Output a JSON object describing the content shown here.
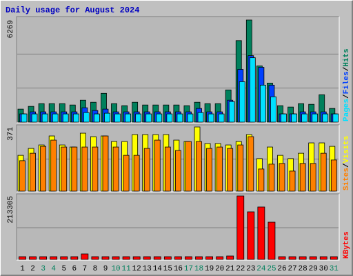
{
  "chart_data": [
    {
      "type": "bar",
      "title": "Daily usage for August 2024",
      "ylim": [
        0,
        6269
      ],
      "yticks": [
        6269
      ],
      "grid_divisions": 3,
      "separator": "/",
      "series": [
        {
          "name": "Hits",
          "color": "#00805c",
          "values": [
            799,
            968,
            1136,
            1136,
            1136,
            1052,
            1346,
            1220,
            1767,
            1136,
            1010,
            1220,
            1052,
            1052,
            1052,
            1052,
            1010,
            1220,
            1136,
            1136,
            1977,
            5006,
            6269,
            3450,
            2398,
            1010,
            926,
            1136,
            1094,
            1683,
            841
          ]
        },
        {
          "name": "Files",
          "color": "#0040ff",
          "values": [
            505,
            631,
            631,
            631,
            631,
            631,
            883,
            715,
            799,
            631,
            631,
            631,
            631,
            631,
            631,
            631,
            631,
            841,
            631,
            631,
            1346,
            3239,
            4081,
            3366,
            2272,
            505,
            505,
            631,
            631,
            631,
            505
          ]
        },
        {
          "name": "Pages",
          "color": "#00e0ff",
          "values": [
            505,
            505,
            505,
            505,
            505,
            505,
            589,
            505,
            547,
            505,
            505,
            505,
            505,
            505,
            505,
            505,
            505,
            589,
            505,
            505,
            1262,
            2482,
            3955,
            2272,
            1557,
            505,
            505,
            505,
            505,
            505,
            505
          ]
        }
      ]
    },
    {
      "type": "bar",
      "ylim": [
        0,
        371
      ],
      "yticks": [
        371
      ],
      "grid_divisions": 2,
      "separator": "/",
      "series": [
        {
          "name": "Visits",
          "color": "#ffff00",
          "values": [
            207,
            247,
            267,
            319,
            267,
            255,
            335,
            315,
            319,
            287,
            287,
            327,
            327,
            327,
            327,
            295,
            287,
            371,
            275,
            275,
            267,
            287,
            327,
            188,
            255,
            207,
            188,
            219,
            279,
            279,
            259
          ]
        },
        {
          "name": "Sites",
          "color": "#ff8000",
          "values": [
            176,
            219,
            259,
            295,
            255,
            255,
            255,
            255,
            319,
            255,
            207,
            207,
            247,
            295,
            255,
            235,
            287,
            287,
            247,
            255,
            247,
            267,
            315,
            128,
            156,
            160,
            116,
            160,
            160,
            219,
            180
          ]
        }
      ]
    },
    {
      "type": "bar",
      "ylim": [
        0,
        213305
      ],
      "yticks": [
        213305
      ],
      "grid_divisions": 2,
      "categories": [
        "1",
        "2",
        "3",
        "4",
        "5",
        "6",
        "7",
        "8",
        "9",
        "10",
        "11",
        "12",
        "13",
        "14",
        "15",
        "16",
        "17",
        "18",
        "19",
        "20",
        "21",
        "22",
        "23",
        "24",
        "25",
        "26",
        "27",
        "28",
        "29",
        "30",
        "31"
      ],
      "category_colors": [
        "#000000",
        "#000000",
        "#00805c",
        "#00805c",
        "#000000",
        "#000000",
        "#000000",
        "#000000",
        "#000000",
        "#00805c",
        "#00805c",
        "#000000",
        "#000000",
        "#000000",
        "#000000",
        "#000000",
        "#00805c",
        "#00805c",
        "#000000",
        "#000000",
        "#000000",
        "#000000",
        "#000000",
        "#00805c",
        "#00805c",
        "#000000",
        "#000000",
        "#000000",
        "#000000",
        "#000000",
        "#00805c"
      ],
      "series": [
        {
          "name": "KBytes",
          "color": "#ff0000",
          "values": [
            9276,
            9276,
            9276,
            9276,
            9276,
            9276,
            18552,
            9276,
            9276,
            9276,
            9276,
            9276,
            9276,
            9276,
            9276,
            9276,
            9276,
            9276,
            9276,
            9276,
            11595,
            213305,
            160000,
            176244,
            125226,
            9276,
            9276,
            9276,
            9276,
            9276,
            9276
          ]
        }
      ]
    }
  ]
}
